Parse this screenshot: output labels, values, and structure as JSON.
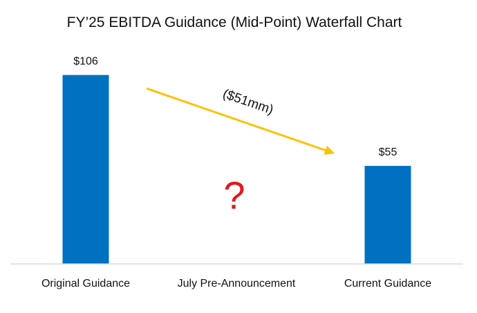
{
  "colors": {
    "bar": "#0070c0",
    "arrow": "#ffc000",
    "question_mark": "#e3181d",
    "baseline": "#d9d9d9",
    "text": "#111111"
  },
  "chart_data": {
    "type": "bar",
    "title": "FY’25 EBITDA Guidance (Mid-Point) Waterfall Chart",
    "categories": [
      "Original Guidance",
      "July Pre-Announcement",
      "Current Guidance"
    ],
    "values": [
      106,
      null,
      55
    ],
    "value_labels": [
      "$106",
      "",
      "$55"
    ],
    "ylim": [
      0,
      106
    ],
    "xlabel": "",
    "ylabel": "",
    "grid": false,
    "legend": "none",
    "annotations": [
      {
        "text": "($51mm)",
        "kind": "arrow",
        "from_category": "Original Guidance",
        "to_category": "Current Guidance"
      },
      {
        "text": "?",
        "kind": "mark",
        "category": "July Pre-Announcement"
      }
    ]
  }
}
